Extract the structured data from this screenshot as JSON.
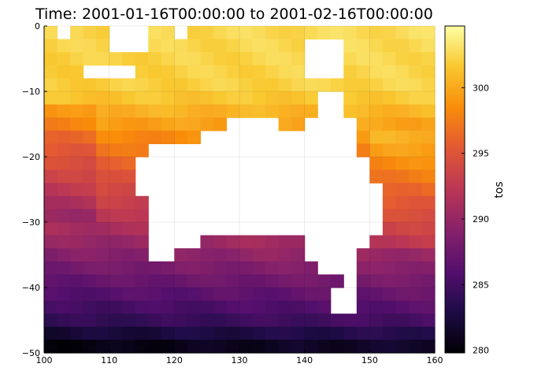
{
  "chart_data": {
    "type": "heatmap",
    "title": "Time: 2001-01-16T00:00:00 to 2001-02-16T00:00:00",
    "xlabel": "",
    "ylabel": "",
    "xlim": [
      100,
      160
    ],
    "ylim": [
      -50,
      0
    ],
    "xticks": [
      100,
      110,
      120,
      130,
      140,
      150,
      160
    ],
    "yticks": [
      0,
      -10,
      -20,
      -30,
      -40,
      -50
    ],
    "colorbar": {
      "label": "tos",
      "range": [
        279.8,
        304.7
      ],
      "ticks": [
        280,
        285,
        290,
        295,
        300
      ],
      "colormap": "inferno"
    },
    "grid": true,
    "cell_size_degrees": 2,
    "values_summary": {
      "latitudes": [
        0,
        -10,
        -20,
        -30,
        -40,
        -50
      ],
      "typical_tos_K": [
        302.5,
        301.5,
        297.5,
        291.5,
        285.5,
        281.0
      ]
    },
    "land_mask_description": "white areas are land (Australia, New Guinea, islands) with no data"
  }
}
